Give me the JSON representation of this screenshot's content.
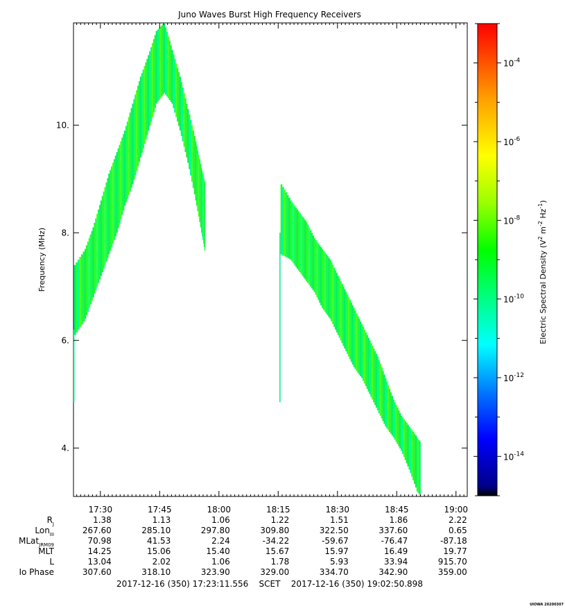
{
  "chart_data": {
    "type": "heatmap",
    "title": "Juno Waves Burst High Frequency Receivers",
    "ylabel": "Frequency (MHz)",
    "colorbar_label": "Electric Spectral Density (V",
    "colorbar_label_sup1": "2",
    "colorbar_label_mid": " m",
    "colorbar_label_sup2": "-2",
    "colorbar_label_mid2": " Hz",
    "colorbar_label_sup3": "-1",
    "colorbar_label_end": ")",
    "x_range_minutes": [
      1043.19,
      1142.85
    ],
    "ylim": [
      3.1,
      11.9
    ],
    "y_ticks": [
      4,
      6,
      8,
      10
    ],
    "y_tick_labels": [
      "4.",
      "6.",
      "8.",
      "10."
    ],
    "x_ticks_minutes": [
      1050,
      1065,
      1080,
      1095,
      1110,
      1125,
      1140
    ],
    "x_tick_labels": [
      "17:30",
      "17:45",
      "18:00",
      "18:15",
      "18:30",
      "18:45",
      "19:00"
    ],
    "colorbar_ticks": [
      {
        "exp": -4,
        "label": "10",
        "sup": "-4"
      },
      {
        "exp": -6,
        "label": "10",
        "sup": "-6"
      },
      {
        "exp": -8,
        "label": "10",
        "sup": "-8"
      },
      {
        "exp": -10,
        "label": "10",
        "sup": "-10"
      },
      {
        "exp": -12,
        "label": "10",
        "sup": "-12"
      },
      {
        "exp": -14,
        "label": "10",
        "sup": "-14"
      }
    ],
    "colorbar_range_exp": [
      -15,
      -3
    ],
    "emission_envelopes": [
      {
        "name": "",
        "points": [
          [
            1043.3,
            6.1,
            7.4
          ],
          [
            1046,
            6.4,
            7.7
          ],
          [
            1048,
            6.8,
            8.1
          ],
          [
            1050,
            7.2,
            8.6
          ],
          [
            1052,
            7.6,
            9.1
          ],
          [
            1054,
            8.0,
            9.5
          ],
          [
            1056,
            8.5,
            9.9
          ],
          [
            1058,
            8.9,
            10.4
          ],
          [
            1060,
            9.4,
            10.9
          ],
          [
            1062,
            9.9,
            11.3
          ],
          [
            1064,
            10.4,
            11.75
          ],
          [
            1066,
            10.6,
            11.9
          ],
          [
            1068,
            10.4,
            11.4
          ],
          [
            1070,
            9.9,
            10.9
          ],
          [
            1072,
            9.3,
            10.3
          ],
          [
            1074,
            8.6,
            9.7
          ],
          [
            1075.5,
            8.0,
            9.2
          ],
          [
            1076.5,
            7.6,
            8.9
          ]
        ],
        "level_exp": -10.5
      },
      {
        "name": "",
        "points": [
          [
            1095.6,
            7.6,
            8.9
          ],
          [
            1098,
            7.5,
            8.6
          ],
          [
            1100,
            7.3,
            8.4
          ],
          [
            1102,
            7.1,
            8.2
          ],
          [
            1104,
            6.9,
            7.9
          ],
          [
            1106,
            6.6,
            7.7
          ],
          [
            1108,
            6.4,
            7.5
          ],
          [
            1110,
            6.1,
            7.2
          ],
          [
            1112,
            5.8,
            6.9
          ],
          [
            1114,
            5.5,
            6.6
          ],
          [
            1116,
            5.3,
            6.3
          ],
          [
            1118,
            5.0,
            6.0
          ],
          [
            1120,
            4.7,
            5.7
          ],
          [
            1122,
            4.4,
            5.3
          ],
          [
            1124,
            4.2,
            4.9
          ],
          [
            1126,
            3.95,
            4.6
          ],
          [
            1128,
            3.6,
            4.4
          ],
          [
            1130,
            3.2,
            4.2
          ],
          [
            1131,
            3.1,
            4.1
          ]
        ],
        "level_exp": -9.8
      }
    ],
    "vertical_streaks": [
      {
        "x": 1043.3,
        "y0": 4.85,
        "y1": 6.2
      },
      {
        "x": 1095.45,
        "y0": 4.85,
        "y1": 8.0
      }
    ],
    "ephemeris": {
      "rows": [
        {
          "label": "R",
          "sub": "J",
          "values": [
            "1.38",
            "1.13",
            "1.06",
            "1.22",
            "1.51",
            "1.86",
            "2.22"
          ]
        },
        {
          "label": "Lon",
          "sub": "III",
          "values": [
            "267.60",
            "285.10",
            "297.80",
            "309.80",
            "322.50",
            "337.60",
            "0.65"
          ]
        },
        {
          "label": "MLat",
          "sub": "JRM09",
          "values": [
            "70.98",
            "41.53",
            "2.24",
            "-34.22",
            "-59.67",
            "-76.47",
            "-87.18"
          ]
        },
        {
          "label": "MLT",
          "sub": "",
          "values": [
            "14.25",
            "15.06",
            "15.40",
            "15.67",
            "15.97",
            "16.49",
            "19.77"
          ]
        },
        {
          "label": "L",
          "sub": "",
          "values": [
            "13.04",
            "2.02",
            "1.06",
            "1.78",
            "5.93",
            "33.94",
            "915.70"
          ]
        },
        {
          "label": "Io Phase",
          "sub": "",
          "values": [
            "307.60",
            "318.10",
            "323.90",
            "329.00",
            "334.70",
            "342.90",
            "359.00"
          ]
        }
      ]
    },
    "time_span": "2017-12-16 (350) 17:23:11.556    SCET    2017-12-16 (350) 19:02:50.898",
    "stamp": "UIOWA 20200307"
  }
}
